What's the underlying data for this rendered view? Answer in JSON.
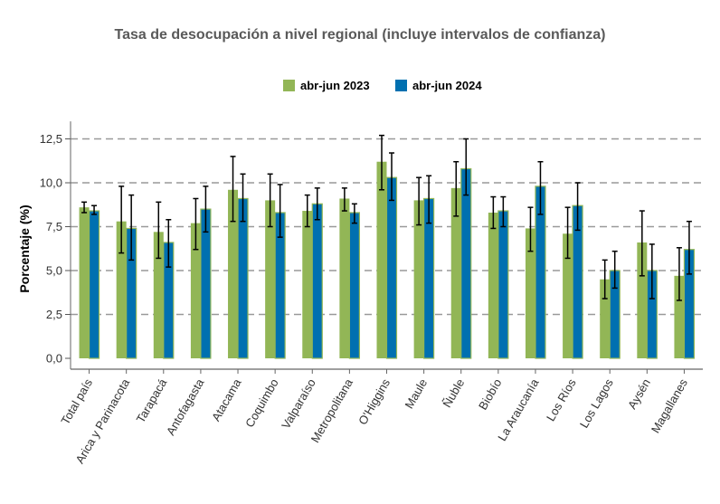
{
  "chart_data": {
    "type": "bar",
    "title": "Tasa de desocupación a nivel regional (incluye intervalos de confianza)",
    "ylabel": "Porcentaje (%)",
    "xlabel": "",
    "ylim": [
      0,
      13.5
    ],
    "yticks": [
      0,
      2.5,
      5,
      7.5,
      10,
      12.5
    ],
    "ytick_labels": [
      "0,0",
      "2,5",
      "5,0",
      "7,5",
      "10,0",
      "12,5"
    ],
    "grid": "horizontal dashed",
    "legend_position": "top",
    "categories": [
      "Total país",
      "Arica y Parinacota",
      "Tarapacá",
      "Antofagasta",
      "Atacama",
      "Coquimbo",
      "Valparaíso",
      "Metropolitana",
      "O'Higgins",
      "Maule",
      "Ñuble",
      "Biobío",
      "La Araucanía",
      "Los Ríos",
      "Los Lagos",
      "Aysén",
      "Magallanes"
    ],
    "series": [
      {
        "name": "abr-jun 2023",
        "color": "#92B656",
        "values": [
          8.6,
          7.8,
          7.2,
          7.7,
          9.6,
          9.0,
          8.4,
          9.1,
          11.2,
          9.0,
          9.7,
          8.3,
          7.4,
          7.1,
          4.5,
          6.6,
          4.7
        ],
        "ci_low": [
          8.3,
          6.0,
          5.7,
          6.2,
          7.8,
          7.5,
          7.5,
          8.4,
          9.6,
          7.6,
          8.1,
          7.4,
          6.1,
          5.7,
          3.4,
          4.7,
          3.3
        ],
        "ci_high": [
          8.9,
          9.8,
          8.9,
          9.1,
          11.5,
          10.5,
          9.3,
          9.7,
          12.7,
          10.3,
          11.2,
          9.2,
          8.6,
          8.6,
          5.6,
          8.4,
          6.3
        ]
      },
      {
        "name": "abr-jun 2024",
        "color": "#0070B0",
        "values": [
          8.4,
          7.4,
          6.6,
          8.5,
          9.1,
          8.3,
          8.8,
          8.3,
          10.3,
          9.1,
          10.8,
          8.4,
          9.8,
          8.7,
          5.0,
          5.0,
          6.2
        ],
        "ci_low": [
          8.2,
          5.6,
          5.2,
          7.2,
          7.8,
          6.9,
          7.9,
          7.7,
          9.0,
          7.7,
          9.3,
          7.5,
          8.2,
          7.3,
          4.0,
          3.4,
          4.8
        ],
        "ci_high": [
          8.7,
          9.3,
          7.9,
          9.8,
          10.5,
          9.9,
          9.7,
          8.8,
          11.7,
          10.4,
          12.5,
          9.2,
          11.2,
          10.0,
          6.1,
          6.5,
          7.8
        ]
      }
    ]
  }
}
